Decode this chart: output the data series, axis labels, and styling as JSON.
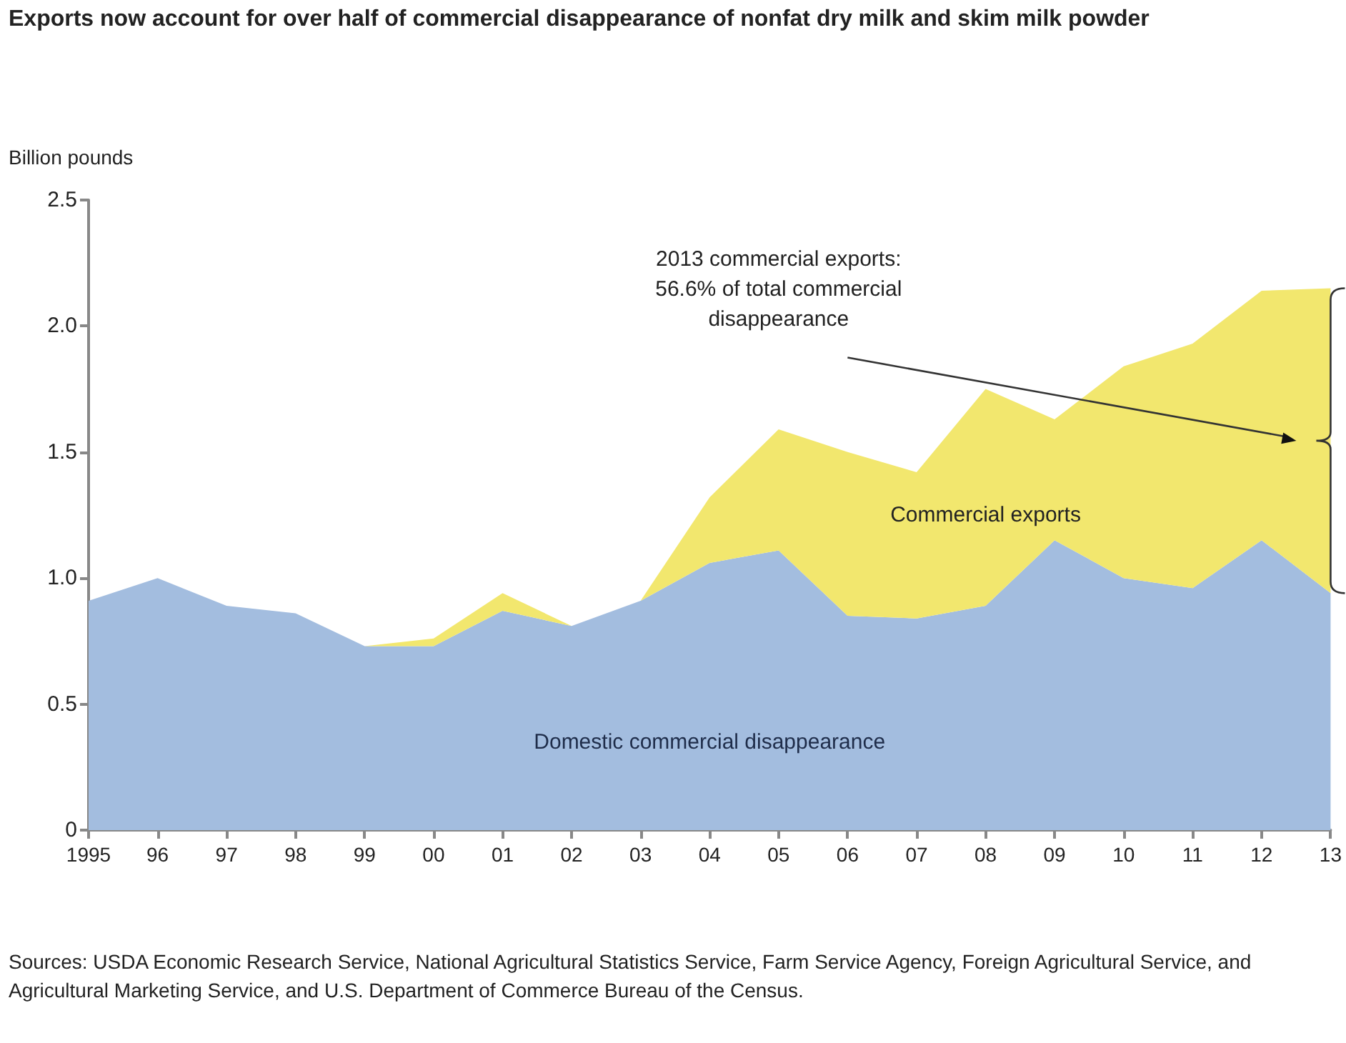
{
  "chart_data": {
    "type": "area",
    "stacked": true,
    "title": "Exports now account for over half of commercial disappearance of nonfat dry milk and skim milk powder",
    "ylabel": "Billion pounds",
    "categories": [
      "1995",
      "96",
      "97",
      "98",
      "99",
      "00",
      "01",
      "02",
      "03",
      "04",
      "05",
      "06",
      "07",
      "08",
      "09",
      "10",
      "11",
      "12",
      "13"
    ],
    "series": [
      {
        "name": "Domestic commercial disappearance",
        "color": "#a3bddf",
        "values": [
          0.91,
          1.0,
          0.89,
          0.86,
          0.73,
          0.73,
          0.87,
          0.81,
          0.91,
          1.06,
          1.11,
          0.85,
          0.84,
          0.89,
          1.15,
          1.0,
          0.96,
          1.15,
          0.94
        ]
      },
      {
        "name": "Commercial exports",
        "color": "#f2e76e",
        "values": [
          0,
          0,
          0,
          0,
          0,
          0.03,
          0.07,
          0,
          0,
          0.26,
          0.48,
          0.65,
          0.58,
          0.86,
          0.48,
          0.84,
          0.97,
          0.99,
          1.21
        ]
      }
    ],
    "ylim": [
      0,
      2.5
    ],
    "yticks": [
      0,
      0.5,
      {
        "value": 1,
        "label": "1.0"
      },
      1.5,
      {
        "value": 2,
        "label": "2.0"
      },
      2.5
    ],
    "grid": false,
    "legend": false,
    "marker": "none",
    "annotations": [
      "2013 commercial exports:\n56.6% of total commercial\ndisappearance",
      "Sources: USDA Economic Research Service, National Agricultural Statistics Service, Farm Service Agency, Foreign Agricultural Service, and Agricultural Marketing Service, and U.S. Department of Commerce Bureau of the Census."
    ]
  }
}
